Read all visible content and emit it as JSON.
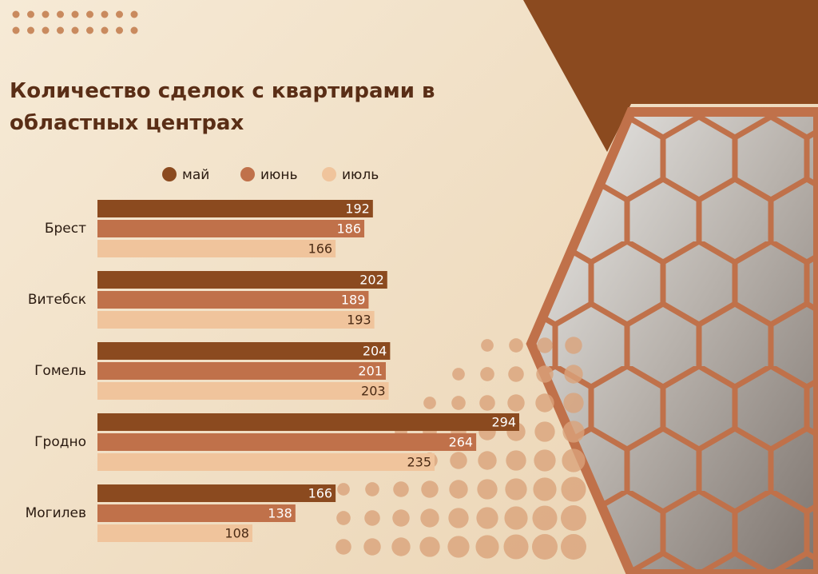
{
  "chart_data": {
    "type": "bar",
    "orientation": "horizontal",
    "title": "Количество сделок с квартирами в областных центрах",
    "categories": [
      "Брест",
      "Витебск",
      "Гомель",
      "Гродно",
      "Могилев"
    ],
    "series": [
      {
        "name": "май",
        "color": "#8b4a1f",
        "values": [
          192,
          202,
          204,
          294,
          166
        ]
      },
      {
        "name": "июнь",
        "color": "#c0714a",
        "values": [
          186,
          189,
          201,
          264,
          138
        ]
      },
      {
        "name": "июль",
        "color": "#f0c49c",
        "values": [
          166,
          193,
          203,
          235,
          108
        ]
      }
    ]
  }
}
